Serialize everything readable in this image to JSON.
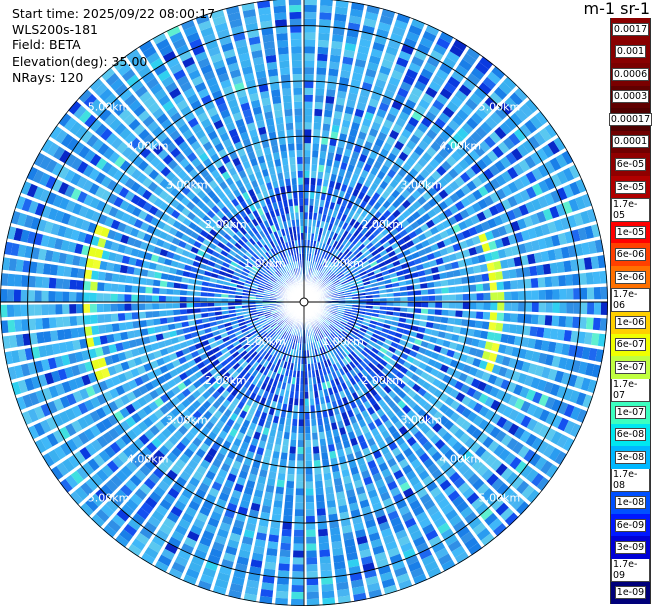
{
  "header": {
    "start_time": "Start time: 2025/09/22 08:00:17",
    "instrument": "WLS200s-181",
    "field": "Field: BETA",
    "elevation": "Elevation(deg): 35.00",
    "nrays": "NRays: 120"
  },
  "colorbar": {
    "title": "m-1 sr-1",
    "colors": [
      "#00007a",
      "#0000a8",
      "#0000d6",
      "#0018ff",
      "#0050ff",
      "#0090ff",
      "#00b8ff",
      "#00e8f0",
      "#3cffc0",
      "#80ff80",
      "#c0ff40",
      "#f0ff00",
      "#ffd000",
      "#ffa000",
      "#ff7000",
      "#ff4000",
      "#ff0000",
      "#d80000",
      "#b00000",
      "#900000",
      "#700000",
      "#500000",
      "#600000",
      "#7a0000",
      "#880000",
      "#8a0000"
    ],
    "labels": [
      "1e-09",
      "1.7e-09",
      "3e-09",
      "6e-09",
      "1e-08",
      "1.7e-08",
      "3e-08",
      "6e-08",
      "1e-07",
      "1.7e-07",
      "3e-07",
      "6e-07",
      "1e-06",
      "1.7e-06",
      "3e-06",
      "6e-06",
      "1e-05",
      "1.7e-05",
      "3e-05",
      "6e-05",
      "0.0001",
      "0.00017",
      "0.0003",
      "0.0006",
      "0.001",
      "0.0017"
    ]
  },
  "chart_data": {
    "type": "heatmap",
    "projection": "polar-ppi",
    "field": "BETA",
    "elevation_deg": 35.0,
    "n_rays": 120,
    "range_max_km": 5.5,
    "range_rings_km": [
      1,
      2,
      3,
      4,
      5
    ],
    "range_ring_labels": [
      "1.00km",
      "2.00km",
      "3.00km",
      "4.00km",
      "5.00km"
    ],
    "dominant_value_range": [
      "1e-08",
      "6e-08"
    ],
    "features": [
      {
        "description": "enhanced backscatter arc",
        "azimuth_deg_center": 270,
        "range_km": 3.9,
        "value_approx": "1e-06"
      },
      {
        "description": "enhanced backscatter arc",
        "azimuth_deg_center": 90,
        "range_km": 3.5,
        "value_approx": "6e-07"
      }
    ],
    "grid": true
  }
}
